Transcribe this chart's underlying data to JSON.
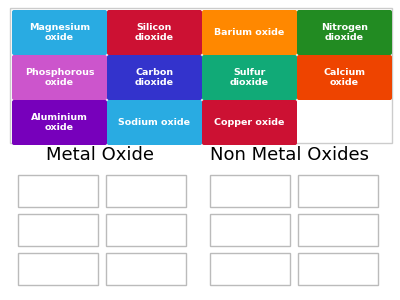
{
  "background_color": "#ffffff",
  "cards": [
    {
      "label": "Magnesium\noxide",
      "color": "#29ABE2",
      "row": 0,
      "col": 0
    },
    {
      "label": "Silicon\ndioxide",
      "color": "#CC1133",
      "row": 0,
      "col": 1
    },
    {
      "label": "Barium oxide",
      "color": "#FF8800",
      "row": 0,
      "col": 2
    },
    {
      "label": "Nitrogen\ndioxide",
      "color": "#228B22",
      "row": 0,
      "col": 3
    },
    {
      "label": "Phosphorous\noxide",
      "color": "#CC55CC",
      "row": 1,
      "col": 0
    },
    {
      "label": "Carbon\ndioxide",
      "color": "#3333CC",
      "row": 1,
      "col": 1
    },
    {
      "label": "Sulfur\ndioxide",
      "color": "#11AA77",
      "row": 1,
      "col": 2
    },
    {
      "label": "Calcium\noxide",
      "color": "#EE4400",
      "row": 1,
      "col": 3
    },
    {
      "label": "Aluminium\noxide",
      "color": "#7700BB",
      "row": 2,
      "col": 0
    },
    {
      "label": "Sodium oxide",
      "color": "#29ABE2",
      "row": 2,
      "col": 1
    },
    {
      "label": "Copper oxide",
      "color": "#CC1133",
      "row": 2,
      "col": 2
    }
  ],
  "sort_left_label": "Metal Oxide",
  "sort_right_label": "Non Metal Oxides",
  "border_color": "#cccccc",
  "box_border_color": "#bbbbbb"
}
